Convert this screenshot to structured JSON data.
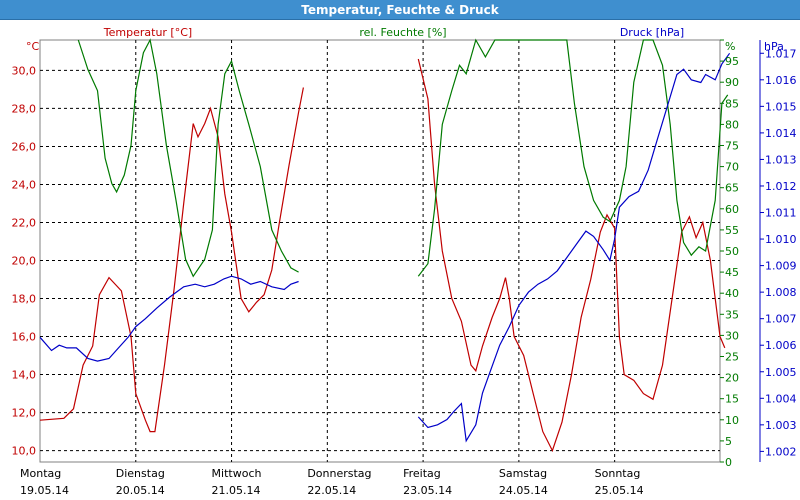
{
  "window": {
    "title": "Temperatur, Feuchte & Druck"
  },
  "colors": {
    "temperature": "#c00000",
    "humidity": "#007a00",
    "pressure": "#0000c8",
    "grid": "#000000",
    "frame": "#808080"
  },
  "chart_data": {
    "type": "line",
    "title": "Temperatur, Feuchte & Druck",
    "grid": true,
    "x_range": [
      0,
      7.1
    ],
    "x_ticks": [
      {
        "day": "Montag",
        "date": "19.05.14",
        "x": 0
      },
      {
        "day": "Dienstag",
        "date": "20.05.14",
        "x": 1
      },
      {
        "day": "Mittwoch",
        "date": "21.05.14",
        "x": 2
      },
      {
        "day": "Donnerstag",
        "date": "22.05.14",
        "x": 3
      },
      {
        "day": "Freitag",
        "date": "23.05.14",
        "x": 4
      },
      {
        "day": "Samstag",
        "date": "24.05.14",
        "x": 5
      },
      {
        "day": "Sonntag",
        "date": "25.05.14",
        "x": 6
      }
    ],
    "axes": {
      "temperature": {
        "unit": "°C",
        "label": "Temperatur [°C]",
        "range": [
          9.4,
          31.6
        ],
        "ticks": [
          "10,0",
          "12,0",
          "14,0",
          "16,0",
          "18,0",
          "20,0",
          "22,0",
          "24,0",
          "26,0",
          "28,0",
          "30,0"
        ],
        "tick_values": [
          10,
          12,
          14,
          16,
          18,
          20,
          22,
          24,
          26,
          28,
          30
        ]
      },
      "humidity": {
        "unit": "%",
        "label": "rel. Feuchte [%]",
        "range": [
          0,
          100
        ],
        "ticks": [
          "0",
          "5",
          "10",
          "15",
          "20",
          "25",
          "30",
          "35",
          "40",
          "45",
          "50",
          "55",
          "60",
          "65",
          "70",
          "75",
          "80",
          "85",
          "90",
          "95",
          "%"
        ],
        "tick_values": [
          0,
          5,
          10,
          15,
          20,
          25,
          30,
          35,
          40,
          45,
          50,
          55,
          60,
          65,
          70,
          75,
          80,
          85,
          90,
          95,
          100
        ]
      },
      "pressure": {
        "unit": "hPa",
        "label": "Druck [hPa]",
        "range": [
          1001.6,
          1017.5
        ],
        "ticks": [
          "1.002",
          "1.003",
          "1.004",
          "1.005",
          "1.006",
          "1.007",
          "1.008",
          "1.009",
          "1.010",
          "1.011",
          "1.012",
          "1.013",
          "1.014",
          "1.015",
          "1.016",
          "1.017"
        ],
        "tick_values": [
          1002,
          1003,
          1004,
          1005,
          1006,
          1007,
          1008,
          1009,
          1010,
          1011,
          1012,
          1013,
          1014,
          1015,
          1016,
          1017
        ]
      }
    },
    "series": [
      {
        "name": "Temperatur [°C]",
        "axis": "temperature",
        "segments": [
          [
            [
              0,
              11.6
            ],
            [
              0.25,
              11.7
            ],
            [
              0.35,
              12.2
            ],
            [
              0.45,
              14.5
            ],
            [
              0.55,
              15.5
            ],
            [
              0.62,
              18.2
            ],
            [
              0.72,
              19.1
            ],
            [
              0.85,
              18.4
            ],
            [
              0.95,
              16.0
            ],
            [
              1.0,
              13.0
            ],
            [
              1.1,
              11.6
            ],
            [
              1.15,
              11.0
            ],
            [
              1.2,
              11.0
            ],
            [
              1.3,
              14.5
            ],
            [
              1.4,
              18.5
            ],
            [
              1.5,
              23.0
            ],
            [
              1.6,
              27.2
            ],
            [
              1.65,
              26.5
            ],
            [
              1.72,
              27.2
            ],
            [
              1.78,
              28.0
            ],
            [
              1.86,
              26.5
            ],
            [
              1.93,
              23.5
            ],
            [
              2.0,
              21.5
            ],
            [
              2.1,
              18.0
            ],
            [
              2.18,
              17.3
            ],
            [
              2.26,
              17.8
            ],
            [
              2.34,
              18.2
            ],
            [
              2.42,
              19.5
            ],
            [
              2.5,
              22.0
            ],
            [
              2.6,
              25.0
            ],
            [
              2.7,
              27.8
            ],
            [
              2.75,
              29.1
            ]
          ],
          [
            [
              3.95,
              30.6
            ],
            [
              4.05,
              28.5
            ],
            [
              4.12,
              24.0
            ],
            [
              4.2,
              20.5
            ],
            [
              4.3,
              18.0
            ],
            [
              4.4,
              16.8
            ],
            [
              4.5,
              14.5
            ],
            [
              4.55,
              14.2
            ],
            [
              4.62,
              15.5
            ],
            [
              4.72,
              17.0
            ],
            [
              4.8,
              18.0
            ],
            [
              4.86,
              19.1
            ],
            [
              4.9,
              18.0
            ],
            [
              4.95,
              16.0
            ],
            [
              5.05,
              15.0
            ],
            [
              5.15,
              13.0
            ],
            [
              5.25,
              11.0
            ],
            [
              5.35,
              10.0
            ],
            [
              5.45,
              11.5
            ],
            [
              5.55,
              14.0
            ],
            [
              5.65,
              17.0
            ],
            [
              5.75,
              19.0
            ],
            [
              5.85,
              21.5
            ],
            [
              5.92,
              22.4
            ],
            [
              6.0,
              21.7
            ],
            [
              6.05,
              16.0
            ],
            [
              6.1,
              14.0
            ],
            [
              6.2,
              13.7
            ],
            [
              6.3,
              13.0
            ],
            [
              6.4,
              12.7
            ],
            [
              6.5,
              14.5
            ],
            [
              6.6,
              18.0
            ],
            [
              6.7,
              21.5
            ],
            [
              6.78,
              22.3
            ],
            [
              6.85,
              21.2
            ],
            [
              6.92,
              22.0
            ],
            [
              7.0,
              20.0
            ],
            [
              7.1,
              16.0
            ],
            [
              7.15,
              15.4
            ]
          ]
        ]
      },
      {
        "name": "rel. Feuchte [%]",
        "axis": "humidity",
        "segments": [
          [
            [
              0.4,
              100
            ],
            [
              0.5,
              93
            ],
            [
              0.6,
              88
            ],
            [
              0.68,
              72
            ],
            [
              0.75,
              66
            ],
            [
              0.8,
              64
            ],
            [
              0.88,
              68
            ],
            [
              0.95,
              75
            ],
            [
              1.0,
              88
            ],
            [
              1.08,
              97
            ],
            [
              1.15,
              100
            ],
            [
              1.22,
              92
            ],
            [
              1.32,
              75
            ],
            [
              1.42,
              62
            ],
            [
              1.52,
              48
            ],
            [
              1.6,
              44
            ],
            [
              1.72,
              48
            ],
            [
              1.8,
              55
            ],
            [
              1.86,
              80
            ],
            [
              1.93,
              92
            ],
            [
              2.0,
              95
            ],
            [
              2.08,
              88
            ],
            [
              2.18,
              80
            ],
            [
              2.3,
              70
            ],
            [
              2.42,
              55
            ],
            [
              2.52,
              50
            ],
            [
              2.62,
              46
            ],
            [
              2.7,
              45
            ]
          ],
          [
            [
              3.95,
              44
            ],
            [
              4.05,
              47
            ],
            [
              4.12,
              60
            ],
            [
              4.2,
              80
            ],
            [
              4.3,
              88
            ],
            [
              4.38,
              94
            ],
            [
              4.45,
              92
            ],
            [
              4.55,
              100
            ],
            [
              4.65,
              96
            ],
            [
              4.75,
              100
            ],
            [
              5.5,
              100
            ],
            [
              5.58,
              85
            ],
            [
              5.68,
              70
            ],
            [
              5.78,
              62
            ],
            [
              5.88,
              58
            ],
            [
              5.95,
              57
            ],
            [
              6.05,
              62
            ],
            [
              6.12,
              70
            ],
            [
              6.2,
              90
            ],
            [
              6.3,
              100
            ],
            [
              6.4,
              100
            ],
            [
              6.5,
              94
            ],
            [
              6.58,
              80
            ],
            [
              6.65,
              62
            ],
            [
              6.72,
              52
            ],
            [
              6.8,
              49
            ],
            [
              6.88,
              51
            ],
            [
              6.95,
              50
            ],
            [
              7.05,
              62
            ],
            [
              7.12,
              85
            ],
            [
              7.18,
              87
            ]
          ]
        ]
      },
      {
        "name": "Druck [hPa]",
        "axis": "pressure",
        "segments": [
          [
            [
              0,
              1006.3
            ],
            [
              0.12,
              1005.8
            ],
            [
              0.2,
              1006.0
            ],
            [
              0.28,
              1005.9
            ],
            [
              0.38,
              1005.9
            ],
            [
              0.5,
              1005.5
            ],
            [
              0.6,
              1005.4
            ],
            [
              0.72,
              1005.5
            ],
            [
              0.82,
              1005.9
            ],
            [
              0.92,
              1006.3
            ],
            [
              1.0,
              1006.7
            ],
            [
              1.1,
              1007.0
            ],
            [
              1.22,
              1007.4
            ],
            [
              1.35,
              1007.8
            ],
            [
              1.5,
              1008.2
            ],
            [
              1.62,
              1008.3
            ],
            [
              1.72,
              1008.2
            ],
            [
              1.82,
              1008.3
            ],
            [
              1.92,
              1008.5
            ],
            [
              2.0,
              1008.6
            ],
            [
              2.1,
              1008.5
            ],
            [
              2.2,
              1008.3
            ],
            [
              2.3,
              1008.4
            ],
            [
              2.42,
              1008.2
            ],
            [
              2.55,
              1008.1
            ],
            [
              2.62,
              1008.3
            ],
            [
              2.7,
              1008.4
            ]
          ],
          [
            [
              3.95,
              1003.3
            ],
            [
              4.05,
              1002.9
            ],
            [
              4.15,
              1003.0
            ],
            [
              4.25,
              1003.2
            ],
            [
              4.32,
              1003.5
            ],
            [
              4.4,
              1003.8
            ],
            [
              4.45,
              1002.4
            ],
            [
              4.55,
              1003.0
            ],
            [
              4.62,
              1004.2
            ],
            [
              4.7,
              1005.0
            ],
            [
              4.8,
              1006.0
            ],
            [
              4.9,
              1006.7
            ],
            [
              5.0,
              1007.5
            ],
            [
              5.1,
              1008.0
            ],
            [
              5.2,
              1008.3
            ],
            [
              5.3,
              1008.5
            ],
            [
              5.4,
              1008.8
            ],
            [
              5.5,
              1009.3
            ],
            [
              5.6,
              1009.8
            ],
            [
              5.7,
              1010.3
            ],
            [
              5.78,
              1010.1
            ],
            [
              5.88,
              1009.6
            ],
            [
              5.95,
              1009.2
            ],
            [
              6.0,
              1010.0
            ],
            [
              6.05,
              1011.2
            ],
            [
              6.15,
              1011.6
            ],
            [
              6.25,
              1011.8
            ],
            [
              6.35,
              1012.6
            ],
            [
              6.45,
              1013.8
            ],
            [
              6.55,
              1015.0
            ],
            [
              6.65,
              1016.2
            ],
            [
              6.72,
              1016.4
            ],
            [
              6.8,
              1016.0
            ],
            [
              6.9,
              1015.9
            ],
            [
              6.95,
              1016.2
            ],
            [
              7.05,
              1016.0
            ],
            [
              7.12,
              1016.6
            ],
            [
              7.2,
              1017.0
            ]
          ]
        ]
      }
    ]
  }
}
